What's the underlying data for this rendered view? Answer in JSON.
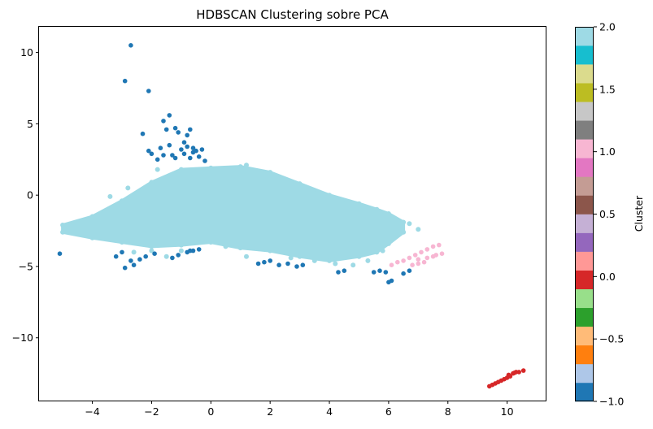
{
  "chart_data": {
    "type": "scatter",
    "title": "HDBSCAN Clustering sobre PCA",
    "xlabel": "",
    "ylabel": "",
    "xlim": [
      -5.8,
      11.3
    ],
    "ylim": [
      -14.4,
      11.8
    ],
    "x_ticks": [
      -4,
      -2,
      0,
      2,
      4,
      6,
      8,
      10
    ],
    "y_ticks": [
      -10,
      -5,
      0,
      5,
      10
    ],
    "grid": false,
    "colorbar": {
      "label": "Cluster",
      "range": [
        -1.0,
        2.0
      ],
      "ticks": [
        "-1.0",
        "-0.5",
        "0.0",
        "0.5",
        "1.0",
        "1.5",
        "2.0"
      ],
      "tick_values": [
        -1.0,
        -0.5,
        0.0,
        0.5,
        1.0,
        1.5,
        2.0
      ],
      "colormap": "tab20",
      "segment_colors": [
        "#1f77b4",
        "#aec7e8",
        "#ff7f0e",
        "#ffbb78",
        "#2ca02c",
        "#98df8a",
        "#d62728",
        "#ff9896",
        "#9467bd",
        "#c5b0d5",
        "#8c564b",
        "#c49c94",
        "#e377c2",
        "#f7b6d2",
        "#7f7f7f",
        "#c7c7c7",
        "#bcbd22",
        "#dbdb8d",
        "#17becf",
        "#9edae5"
      ]
    },
    "clusters": [
      {
        "label": -1,
        "color": "#1f77b4",
        "points": [
          [
            -2.7,
            10.5
          ],
          [
            -2.9,
            8.0
          ],
          [
            -2.1,
            7.3
          ],
          [
            -1.4,
            5.6
          ],
          [
            -1.6,
            5.2
          ],
          [
            -2.3,
            4.3
          ],
          [
            -1.5,
            4.6
          ],
          [
            -1.2,
            4.7
          ],
          [
            -0.7,
            4.6
          ],
          [
            -1.1,
            4.4
          ],
          [
            -0.8,
            4.2
          ],
          [
            -2.1,
            3.1
          ],
          [
            -2.0,
            2.9
          ],
          [
            -1.7,
            3.3
          ],
          [
            -1.4,
            3.5
          ],
          [
            -1.0,
            3.2
          ],
          [
            -0.8,
            3.4
          ],
          [
            -0.6,
            3.3
          ],
          [
            -0.5,
            3.1
          ],
          [
            -1.6,
            2.8
          ],
          [
            -1.3,
            2.8
          ],
          [
            -0.9,
            2.9
          ],
          [
            -0.3,
            3.2
          ],
          [
            -0.9,
            3.7
          ],
          [
            -0.6,
            3.0
          ],
          [
            -1.8,
            2.5
          ],
          [
            -0.7,
            2.6
          ],
          [
            -0.4,
            2.7
          ],
          [
            -1.2,
            2.6
          ],
          [
            -0.2,
            2.4
          ],
          [
            -5.1,
            -4.1
          ],
          [
            -3.2,
            -4.3
          ],
          [
            -3.0,
            -4.0
          ],
          [
            -2.7,
            -4.6
          ],
          [
            -2.9,
            -5.1
          ],
          [
            -2.6,
            -4.9
          ],
          [
            -2.4,
            -4.5
          ],
          [
            -2.2,
            -4.3
          ],
          [
            -1.9,
            -4.1
          ],
          [
            -1.3,
            -4.4
          ],
          [
            -1.1,
            -4.2
          ],
          [
            -0.8,
            -4.0
          ],
          [
            -0.6,
            -3.9
          ],
          [
            -0.4,
            -3.8
          ],
          [
            -0.7,
            -3.9
          ],
          [
            1.6,
            -4.8
          ],
          [
            1.8,
            -4.7
          ],
          [
            2.0,
            -4.6
          ],
          [
            2.3,
            -4.9
          ],
          [
            2.6,
            -4.8
          ],
          [
            2.9,
            -5.0
          ],
          [
            3.1,
            -4.9
          ],
          [
            4.3,
            -5.4
          ],
          [
            4.5,
            -5.3
          ],
          [
            5.5,
            -5.4
          ],
          [
            5.7,
            -5.3
          ],
          [
            5.9,
            -5.4
          ],
          [
            6.0,
            -6.1
          ],
          [
            6.1,
            -6.0
          ],
          [
            6.7,
            -5.3
          ],
          [
            6.5,
            -5.5
          ]
        ]
      },
      {
        "label": 0,
        "color": "#d62728",
        "points": [
          [
            9.4,
            -13.4
          ],
          [
            9.5,
            -13.3
          ],
          [
            9.6,
            -13.2
          ],
          [
            9.7,
            -13.1
          ],
          [
            9.8,
            -13.0
          ],
          [
            9.9,
            -12.9
          ],
          [
            10.0,
            -12.8
          ],
          [
            10.1,
            -12.7
          ],
          [
            10.2,
            -12.5
          ],
          [
            10.3,
            -12.4
          ],
          [
            10.4,
            -12.4
          ],
          [
            10.55,
            -12.3
          ],
          [
            10.05,
            -12.6
          ],
          [
            10.25,
            -12.45
          ]
        ]
      },
      {
        "label": 1,
        "color": "#f7b6d2",
        "points": [
          [
            6.1,
            -4.9
          ],
          [
            6.3,
            -4.7
          ],
          [
            6.5,
            -4.6
          ],
          [
            6.7,
            -4.4
          ],
          [
            6.9,
            -4.2
          ],
          [
            7.1,
            -4.0
          ],
          [
            7.3,
            -3.8
          ],
          [
            7.5,
            -3.6
          ],
          [
            7.7,
            -3.5
          ],
          [
            7.0,
            -4.5
          ],
          [
            7.3,
            -4.4
          ],
          [
            7.6,
            -4.2
          ],
          [
            7.8,
            -4.1
          ],
          [
            6.8,
            -4.9
          ],
          [
            7.0,
            -4.8
          ],
          [
            7.2,
            -4.7
          ],
          [
            7.5,
            -4.3
          ]
        ]
      },
      {
        "label": 2,
        "color": "#9edae5",
        "region": {
          "upper": [
            [
              -5.0,
              -2.1
            ],
            [
              -4.0,
              -1.5
            ],
            [
              -3.0,
              -0.4
            ],
            [
              -2.0,
              0.9
            ],
            [
              -1.0,
              1.8
            ],
            [
              0.0,
              1.9
            ],
            [
              1.0,
              2.0
            ],
            [
              2.0,
              1.6
            ],
            [
              3.0,
              0.8
            ],
            [
              4.0,
              0.0
            ],
            [
              5.0,
              -0.6
            ],
            [
              5.6,
              -1.0
            ],
            [
              6.0,
              -1.3
            ],
            [
              6.5,
              -1.9
            ]
          ],
          "lower": [
            [
              6.5,
              -2.6
            ],
            [
              6.0,
              -3.4
            ],
            [
              5.6,
              -4.0
            ],
            [
              5.0,
              -4.3
            ],
            [
              4.0,
              -4.6
            ],
            [
              3.0,
              -4.3
            ],
            [
              2.0,
              -3.9
            ],
            [
              1.0,
              -3.7
            ],
            [
              0.0,
              -3.3
            ],
            [
              -1.0,
              -3.5
            ],
            [
              -2.0,
              -3.6
            ],
            [
              -3.0,
              -3.3
            ],
            [
              -4.0,
              -3.0
            ],
            [
              -5.0,
              -2.6
            ]
          ]
        },
        "outliers": [
          [
            -2.6,
            -4.0
          ],
          [
            -2.0,
            -3.9
          ],
          [
            -1.5,
            -4.3
          ],
          [
            -1.0,
            -3.9
          ],
          [
            0.5,
            -3.6
          ],
          [
            2.7,
            -4.4
          ],
          [
            3.5,
            -4.6
          ],
          [
            4.2,
            -4.8
          ],
          [
            4.8,
            -4.9
          ],
          [
            5.3,
            -4.6
          ],
          [
            5.8,
            -3.9
          ],
          [
            6.7,
            -2.0
          ],
          [
            7.0,
            -2.4
          ],
          [
            4.6,
            -3.2
          ],
          [
            -2.8,
            0.5
          ],
          [
            -3.4,
            -0.1
          ],
          [
            1.2,
            2.1
          ],
          [
            -1.8,
            1.8
          ],
          [
            1.2,
            -4.3
          ]
        ]
      }
    ]
  }
}
